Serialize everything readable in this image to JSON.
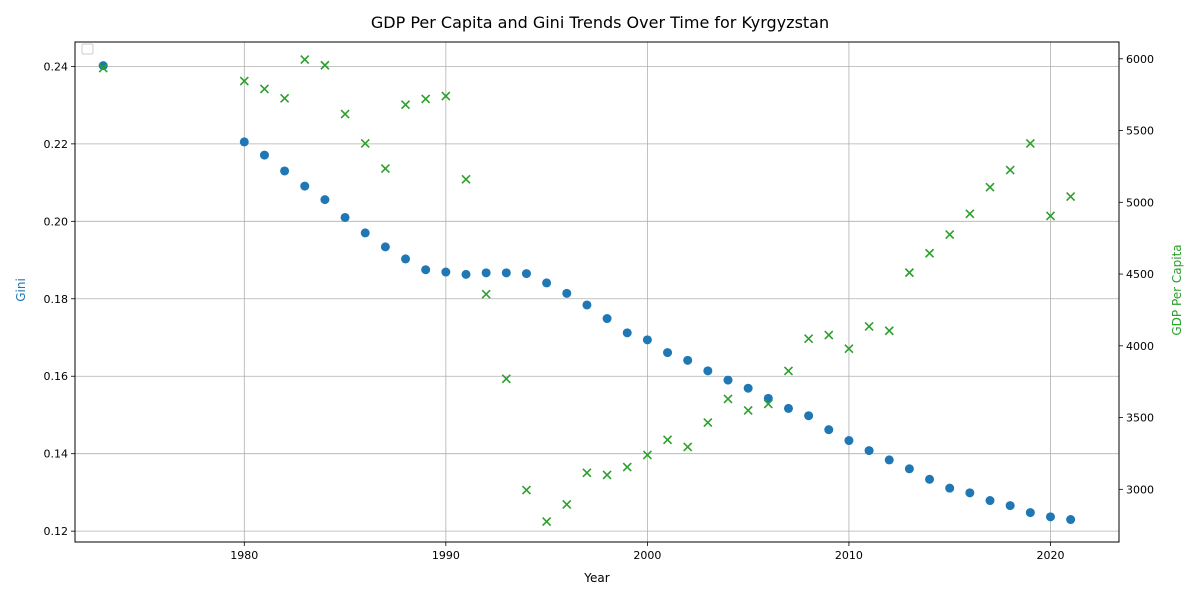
{
  "chart_data": {
    "type": "scatter",
    "title": "GDP Per Capita and Gini Trends Over Time for Kyrgyzstan",
    "xlabel": "Year",
    "ylabel_left": "Gini",
    "ylabel_right": "GDP Per Capita",
    "xlim": [
      1971.6,
      2023.4
    ],
    "ylim_left": [
      0.1172,
      0.2463
    ],
    "ylim_right": [
      2633,
      6117
    ],
    "x_ticks": [
      1980,
      1990,
      2000,
      2010,
      2020
    ],
    "y_left_ticks": [
      0.12,
      0.14,
      0.16,
      0.18,
      0.2,
      0.22,
      0.24
    ],
    "y_left_tick_labels": [
      "0.12",
      "0.14",
      "0.16",
      "0.18",
      "0.20",
      "0.22",
      "0.24"
    ],
    "y_right_ticks": [
      3000,
      3500,
      4000,
      4500,
      5000,
      5500,
      6000
    ],
    "y_right_tick_labels": [
      "3000",
      "3500",
      "4000",
      "4500",
      "5000",
      "5500",
      "6000"
    ],
    "grid": true,
    "legend_position": "top-left",
    "colors": {
      "gini": "#1f77b4",
      "gdp": "#2ca02c"
    },
    "series": [
      {
        "axis": "left",
        "marker": "circle",
        "color": "#1f77b4",
        "x": [
          1973,
          1980,
          1981,
          1982,
          1983,
          1984,
          1985,
          1986,
          1987,
          1988,
          1989,
          1990,
          1991,
          1992,
          1993,
          1994,
          1995,
          1996,
          1997,
          1998,
          1999,
          2000,
          2001,
          2002,
          2003,
          2004,
          2005,
          2006,
          2007,
          2008,
          2009,
          2010,
          2011,
          2012,
          2013,
          2014,
          2015,
          2016,
          2017,
          2018,
          2019,
          2020,
          2021
        ],
        "values": [
          0.2402,
          0.2205,
          0.2171,
          0.213,
          0.2091,
          0.2056,
          0.201,
          0.197,
          0.1934,
          0.1903,
          0.1875,
          0.1869,
          0.1863,
          0.1867,
          0.1867,
          0.1865,
          0.1841,
          0.1814,
          0.1784,
          0.1749,
          0.1712,
          0.1694,
          0.1661,
          0.1641,
          0.1614,
          0.159,
          0.1569,
          0.1543,
          0.1517,
          0.1498,
          0.1462,
          0.1434,
          0.1408,
          0.1384,
          0.1361,
          0.1334,
          0.1311,
          0.1299,
          0.1279,
          0.1266,
          0.1248,
          0.1237,
          0.123
        ]
      },
      {
        "axis": "right",
        "marker": "x",
        "color": "#2ca02c",
        "x": [
          1973,
          1980,
          1981,
          1982,
          1983,
          1984,
          1985,
          1986,
          1987,
          1988,
          1989,
          1990,
          1991,
          1992,
          1993,
          1994,
          1995,
          1996,
          1997,
          1998,
          1999,
          2000,
          2001,
          2002,
          2003,
          2004,
          2005,
          2006,
          2007,
          2008,
          2009,
          2010,
          2011,
          2012,
          2013,
          2014,
          2015,
          2016,
          2017,
          2018,
          2019,
          2020,
          2021
        ],
        "values": [
          5935,
          5845,
          5790,
          5725,
          5995,
          5955,
          5615,
          5410,
          5235,
          5680,
          5720,
          5740,
          5160,
          4360,
          3770,
          2995,
          2775,
          2895,
          3115,
          3100,
          3155,
          3240,
          3345,
          3295,
          3465,
          3630,
          3550,
          3595,
          3825,
          4050,
          4075,
          3980,
          4135,
          4105,
          4510,
          4645,
          4775,
          4920,
          5105,
          5225,
          5410,
          4905,
          5040
        ]
      }
    ]
  }
}
